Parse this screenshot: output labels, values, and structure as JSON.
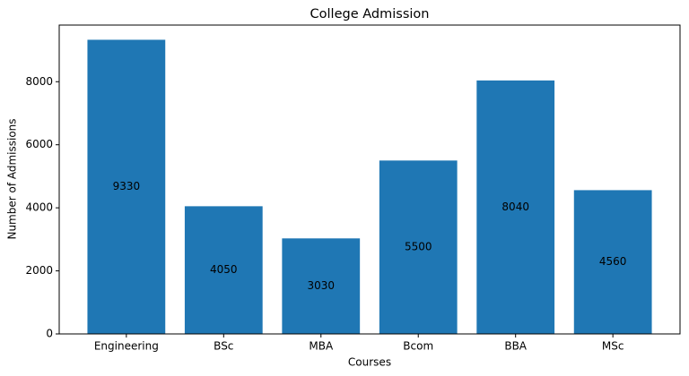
{
  "chart_data": {
    "type": "bar",
    "title": "College Admission",
    "x_label": "Courses",
    "y_label": "Number of Admissions",
    "categories": [
      "Engineering",
      "BSc",
      "MBA",
      "Bcom",
      "BBA",
      "MSc"
    ],
    "values": [
      9330,
      4050,
      3030,
      5500,
      8040,
      4560
    ],
    "color": "#1f77b4",
    "ylim": [
      0,
      9796.5
    ],
    "yticks": [
      0,
      2000,
      4000,
      6000,
      8000
    ],
    "grid": false
  }
}
